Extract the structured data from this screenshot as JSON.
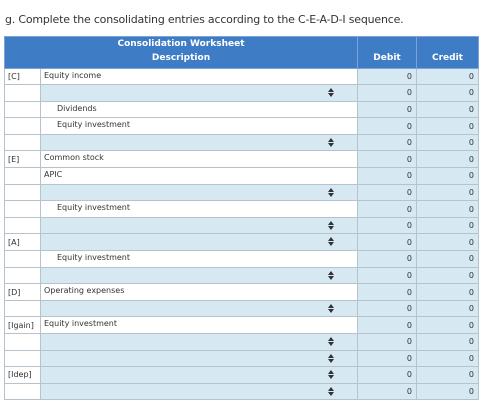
{
  "prompt": "g. Complete the consolidating entries according to the C-E-A-D-I sequence.",
  "worksheet": {
    "title": "Consolidation Worksheet",
    "columns": {
      "description": "Description",
      "debit": "Debit",
      "credit": "Credit"
    },
    "rows": [
      {
        "label": "[C]",
        "account": "Equity income",
        "indent": false,
        "dropdown": false,
        "debit": "0",
        "credit": "0"
      },
      {
        "label": "",
        "account": "",
        "indent": false,
        "dropdown": true,
        "debit": "0",
        "credit": "0"
      },
      {
        "label": "",
        "account": "Dividends",
        "indent": true,
        "dropdown": false,
        "debit": "0",
        "credit": "0"
      },
      {
        "label": "",
        "account": "Equity investment",
        "indent": true,
        "dropdown": false,
        "debit": "0",
        "credit": "0"
      },
      {
        "label": "",
        "account": "",
        "indent": false,
        "dropdown": true,
        "debit": "0",
        "credit": "0"
      },
      {
        "label": "[E]",
        "account": "Common stock",
        "indent": false,
        "dropdown": false,
        "debit": "0",
        "credit": "0"
      },
      {
        "label": "",
        "account": "APIC",
        "indent": false,
        "dropdown": false,
        "debit": "0",
        "credit": "0"
      },
      {
        "label": "",
        "account": "",
        "indent": false,
        "dropdown": true,
        "debit": "0",
        "credit": "0"
      },
      {
        "label": "",
        "account": "Equity investment",
        "indent": true,
        "dropdown": false,
        "debit": "0",
        "credit": "0"
      },
      {
        "label": "",
        "account": "",
        "indent": false,
        "dropdown": true,
        "debit": "0",
        "credit": "0"
      },
      {
        "label": "[A]",
        "account": "",
        "indent": false,
        "dropdown": true,
        "debit": "0",
        "credit": "0"
      },
      {
        "label": "",
        "account": "Equity investment",
        "indent": true,
        "dropdown": false,
        "debit": "0",
        "credit": "0"
      },
      {
        "label": "",
        "account": "",
        "indent": false,
        "dropdown": true,
        "debit": "0",
        "credit": "0"
      },
      {
        "label": "[D]",
        "account": "Operating expenses",
        "indent": false,
        "dropdown": false,
        "debit": "0",
        "credit": "0"
      },
      {
        "label": "",
        "account": "",
        "indent": false,
        "dropdown": true,
        "debit": "0",
        "credit": "0"
      },
      {
        "label": "[Igain]",
        "account": "Equity investment",
        "indent": false,
        "dropdown": false,
        "debit": "0",
        "credit": "0"
      },
      {
        "label": "",
        "account": "",
        "indent": false,
        "dropdown": true,
        "debit": "0",
        "credit": "0"
      },
      {
        "label": "",
        "account": "",
        "indent": false,
        "dropdown": true,
        "debit": "0",
        "credit": "0"
      },
      {
        "label": "[Idep]",
        "account": "",
        "indent": false,
        "dropdown": true,
        "debit": "0",
        "credit": "0"
      },
      {
        "label": "",
        "account": "",
        "indent": false,
        "dropdown": true,
        "debit": "0",
        "credit": "0"
      }
    ]
  },
  "icons": {
    "dropdown": "sort-arrows-icon"
  }
}
